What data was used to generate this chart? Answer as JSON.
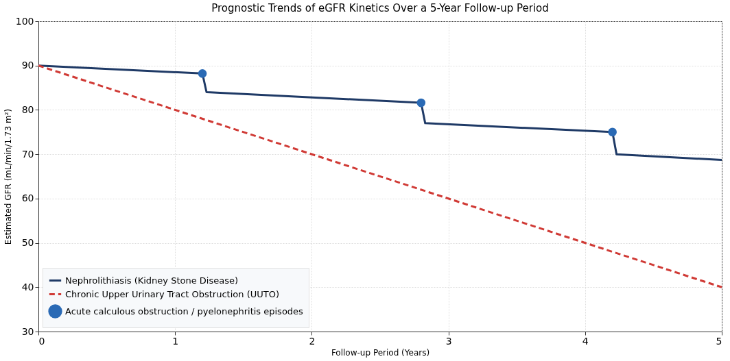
{
  "chart_data": {
    "type": "line",
    "title": "Prognostic Trends of eGFR Kinetics Over a 5-Year Follow-up Period",
    "xlabel": "Follow-up Period (Years)",
    "ylabel": "Estimated GFR (mL/min/1.73 m²)",
    "xlim": [
      0,
      5
    ],
    "xticks": [
      0,
      1,
      2,
      3,
      4,
      5
    ],
    "ylim": [
      30,
      100
    ],
    "yticks": [
      30,
      40,
      50,
      60,
      70,
      80,
      90,
      100
    ],
    "grid": true,
    "legend": "bottom left",
    "series": [
      {
        "name": "Nephrolithiasis (Kidney Stone Disease)",
        "line_style": "solid",
        "color": "#1f3a66",
        "x": [
          0,
          1.2,
          1.23,
          2.8,
          2.83,
          4.2,
          4.23,
          5
        ],
        "values": [
          90,
          88.2,
          84,
          81.6,
          77,
          75,
          70,
          68.7
        ]
      },
      {
        "name": "Chronic Upper Urinary Tract Obstruction (UUTO)",
        "line_style": "dashed",
        "color": "#d03a35",
        "x": [
          0,
          5
        ],
        "values": [
          90,
          40
        ]
      },
      {
        "name": "Acute calculous obstruction / pyelonephritis episodes",
        "type": "scatter",
        "marker": "circle",
        "color": "#2a6ab5",
        "x": [
          1.2,
          2.8,
          4.2
        ],
        "values": [
          88.2,
          81.6,
          75
        ]
      }
    ]
  }
}
